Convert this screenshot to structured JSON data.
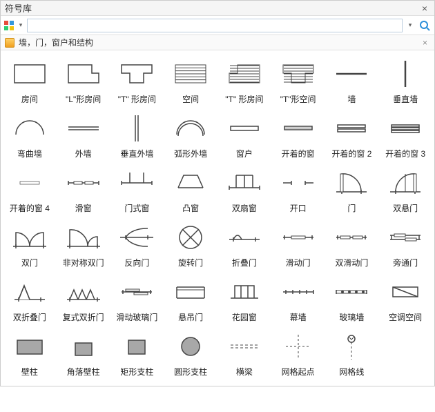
{
  "title": "符号库",
  "search": {
    "value": "",
    "placeholder": ""
  },
  "breadcrumb": "墙，门，窗户和结构",
  "colors": {
    "stroke": "#444444",
    "fill_grey": "#a8a8a8",
    "fill_white": "#ffffff",
    "search_icon": "#2b8fd9"
  },
  "symbols": [
    {
      "id": "room",
      "label": "房间"
    },
    {
      "id": "l-room",
      "label": "\"L\"形房间"
    },
    {
      "id": "t-room",
      "label": "\"T\" 形房间"
    },
    {
      "id": "space",
      "label": "空间"
    },
    {
      "id": "t-room2",
      "label": "\"T\" 形房间"
    },
    {
      "id": "t-space",
      "label": "\"T\"形空间"
    },
    {
      "id": "wall",
      "label": "墙"
    },
    {
      "id": "vwall",
      "label": "垂直墙"
    },
    {
      "id": "curvewall",
      "label": "弯曲墙"
    },
    {
      "id": "extwall",
      "label": "外墙"
    },
    {
      "id": "vextwall",
      "label": "垂直外墙"
    },
    {
      "id": "arcwall",
      "label": "弧形外墙"
    },
    {
      "id": "window",
      "label": "窗户"
    },
    {
      "id": "openwin",
      "label": "开着的窗"
    },
    {
      "id": "openwin2",
      "label": "开着的窗 2"
    },
    {
      "id": "openwin3",
      "label": "开着的窗 3"
    },
    {
      "id": "openwin4",
      "label": "开着的窗 4"
    },
    {
      "id": "slidewin",
      "label": "滑窗"
    },
    {
      "id": "doorwin",
      "label": "门式窗"
    },
    {
      "id": "baywin",
      "label": "凸窗"
    },
    {
      "id": "dblwin",
      "label": "双扇窗"
    },
    {
      "id": "opening",
      "label": "开口"
    },
    {
      "id": "door",
      "label": "门"
    },
    {
      "id": "dblhung",
      "label": "双悬门"
    },
    {
      "id": "dbldoor",
      "label": "双门"
    },
    {
      "id": "asymdbl",
      "label": "非对称双门"
    },
    {
      "id": "revdoor",
      "label": "反向门"
    },
    {
      "id": "revolve",
      "label": "旋转门"
    },
    {
      "id": "folddoor",
      "label": "折叠门"
    },
    {
      "id": "slidedoor",
      "label": "滑动门"
    },
    {
      "id": "dblslide",
      "label": "双滑动门"
    },
    {
      "id": "bypass",
      "label": "旁通门"
    },
    {
      "id": "bifold",
      "label": "双折叠门"
    },
    {
      "id": "compbifold",
      "label": "复式双折门"
    },
    {
      "id": "slideglass",
      "label": "滑动玻璃门"
    },
    {
      "id": "overhang",
      "label": "悬吊门"
    },
    {
      "id": "gardenwin",
      "label": "花园窗"
    },
    {
      "id": "curtainwall",
      "label": "幕墙"
    },
    {
      "id": "glasswall",
      "label": "玻璃墙"
    },
    {
      "id": "acspace",
      "label": "空调空间"
    },
    {
      "id": "pilaster",
      "label": "壁柱"
    },
    {
      "id": "cornerpil",
      "label": "角落壁柱"
    },
    {
      "id": "rectcol",
      "label": "矩形支柱"
    },
    {
      "id": "circcol",
      "label": "圆形支柱"
    },
    {
      "id": "beam",
      "label": "横梁"
    },
    {
      "id": "gridorigin",
      "label": "网格起点"
    },
    {
      "id": "gridline",
      "label": "网格线"
    }
  ]
}
